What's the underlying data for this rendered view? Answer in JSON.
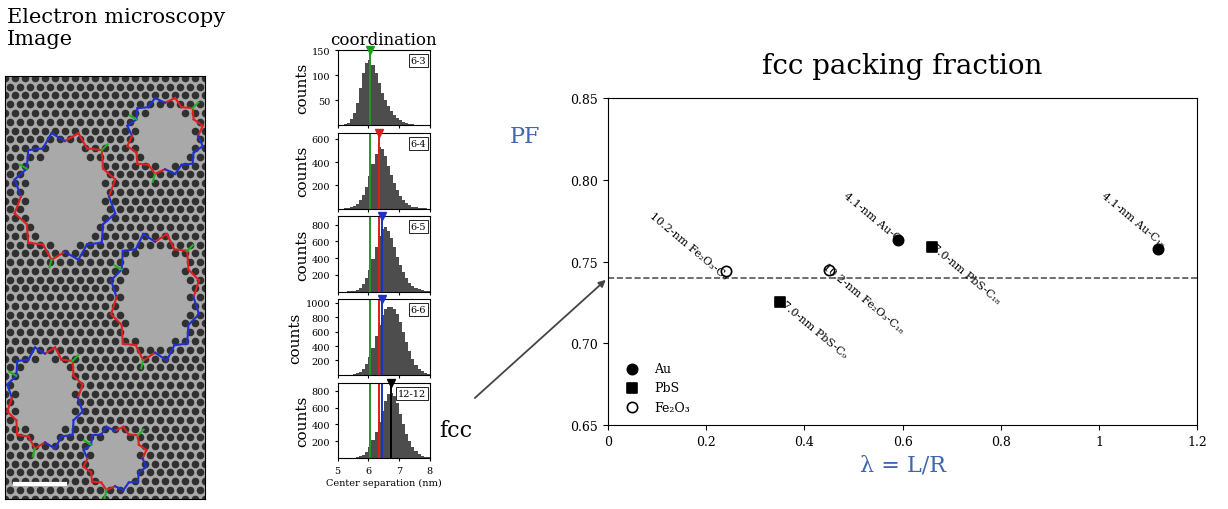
{
  "chart_data": [
    {
      "type": "image",
      "title": "Electron microscopy\nImage"
    },
    {
      "type": "histogram",
      "title": "coordination",
      "label": "6-3",
      "ylabel": "counts",
      "bins": [
        5,
        5.1,
        5.2,
        5.3,
        5.4,
        5.5,
        5.6,
        5.7,
        5.8,
        5.9,
        6,
        6.1,
        6.2,
        6.3,
        6.4,
        6.5,
        6.6,
        6.7,
        6.8,
        6.9,
        7,
        7.1,
        7.2,
        7.3,
        7.4,
        7.5,
        7.6,
        7.7,
        7.8,
        7.9,
        8
      ],
      "counts": [
        0,
        0,
        2,
        5,
        12,
        25,
        45,
        75,
        105,
        125,
        130,
        120,
        105,
        85,
        65,
        50,
        38,
        28,
        20,
        14,
        10,
        7,
        5,
        3,
        2,
        1,
        0,
        0,
        0,
        0
      ],
      "xlim": [
        5,
        8
      ],
      "xticks": [
        5,
        6,
        7,
        8
      ],
      "ylim": [
        0,
        150
      ],
      "yticks": [
        50,
        100,
        150
      ],
      "tick_labels": "y",
      "lines": [
        {
          "x": 6.05,
          "color": "#1a9e1a"
        }
      ]
    },
    {
      "type": "histogram",
      "label": "6-4",
      "ylabel": "counts",
      "bins": [
        5,
        5.1,
        5.2,
        5.3,
        5.4,
        5.5,
        5.6,
        5.7,
        5.8,
        5.9,
        6,
        6.1,
        6.2,
        6.3,
        6.4,
        6.5,
        6.6,
        6.7,
        6.8,
        6.9,
        7,
        7.1,
        7.2,
        7.3,
        7.4,
        7.5,
        7.6,
        7.7,
        7.8,
        7.9,
        8
      ],
      "counts": [
        0,
        0,
        2,
        5,
        10,
        20,
        40,
        70,
        120,
        190,
        280,
        380,
        470,
        530,
        510,
        450,
        370,
        290,
        220,
        160,
        110,
        75,
        50,
        30,
        18,
        10,
        5,
        3,
        1,
        0
      ],
      "xlim": [
        5,
        8
      ],
      "xticks": [
        5,
        6,
        7,
        8
      ],
      "ylim": [
        0,
        650
      ],
      "yticks": [
        200,
        400,
        600
      ],
      "tick_labels": "y",
      "lines": [
        {
          "x": 6.05,
          "color": "#1a9e1a"
        },
        {
          "x": 6.35,
          "color": "#d62020"
        }
      ]
    },
    {
      "type": "histogram",
      "label": "6-5",
      "ylabel": "counts",
      "bins": [
        5,
        5.1,
        5.2,
        5.3,
        5.4,
        5.5,
        5.6,
        5.7,
        5.8,
        5.9,
        6,
        6.1,
        6.2,
        6.3,
        6.4,
        6.5,
        6.6,
        6.7,
        6.8,
        6.9,
        7,
        7.1,
        7.2,
        7.3,
        7.4,
        7.5,
        7.6,
        7.7,
        7.8,
        7.9,
        8
      ],
      "counts": [
        0,
        0,
        1,
        3,
        6,
        12,
        25,
        50,
        90,
        160,
        260,
        390,
        530,
        660,
        750,
        770,
        730,
        640,
        530,
        420,
        320,
        230,
        160,
        110,
        70,
        45,
        28,
        16,
        8,
        4
      ],
      "xlim": [
        5,
        8
      ],
      "xticks": [
        5,
        6,
        7,
        8
      ],
      "ylim": [
        0,
        900
      ],
      "yticks": [
        200,
        400,
        600,
        800
      ],
      "tick_labels": "y",
      "lines": [
        {
          "x": 6.05,
          "color": "#1a9e1a"
        },
        {
          "x": 6.35,
          "color": "#d62020"
        },
        {
          "x": 6.45,
          "color": "#2030c0"
        }
      ]
    },
    {
      "type": "histogram",
      "label": "6-6",
      "ylabel": "counts",
      "bins": [
        5,
        5.1,
        5.2,
        5.3,
        5.4,
        5.5,
        5.6,
        5.7,
        5.8,
        5.9,
        6,
        6.1,
        6.2,
        6.3,
        6.4,
        6.5,
        6.6,
        6.7,
        6.8,
        6.9,
        7,
        7.1,
        7.2,
        7.3,
        7.4,
        7.5,
        7.6,
        7.7,
        7.8,
        7.9,
        8
      ],
      "counts": [
        0,
        0,
        1,
        2,
        5,
        10,
        20,
        40,
        80,
        150,
        250,
        380,
        540,
        700,
        830,
        920,
        950,
        950,
        920,
        850,
        740,
        600,
        460,
        330,
        220,
        140,
        85,
        50,
        25,
        12
      ],
      "xlim": [
        5,
        8
      ],
      "xticks": [
        5,
        6,
        7,
        8
      ],
      "ylim": [
        0,
        1050
      ],
      "yticks": [
        200,
        400,
        600,
        800,
        1000
      ],
      "tick_labels": "y",
      "lines": [
        {
          "x": 6.05,
          "color": "#1a9e1a"
        },
        {
          "x": 6.35,
          "color": "#d62020"
        },
        {
          "x": 6.45,
          "color": "#2030c0"
        }
      ]
    },
    {
      "type": "histogram",
      "label": "12-12",
      "ylabel": "counts",
      "xlabel": "Center separation (nm)",
      "annotation": "fcc",
      "bins": [
        5,
        5.1,
        5.2,
        5.3,
        5.4,
        5.5,
        5.6,
        5.7,
        5.8,
        5.9,
        6,
        6.1,
        6.2,
        6.3,
        6.4,
        6.5,
        6.6,
        6.7,
        6.8,
        6.9,
        7,
        7.1,
        7.2,
        7.3,
        7.4,
        7.5,
        7.6,
        7.7,
        7.8,
        7.9,
        8
      ],
      "counts": [
        0,
        0,
        0,
        1,
        2,
        5,
        10,
        20,
        40,
        75,
        130,
        210,
        310,
        430,
        560,
        680,
        760,
        780,
        740,
        650,
        530,
        400,
        290,
        200,
        130,
        80,
        45,
        25,
        12,
        6
      ],
      "xlim": [
        5,
        8
      ],
      "xticks": [
        5,
        6,
        7,
        8
      ],
      "ylim": [
        0,
        900
      ],
      "yticks": [
        200,
        400,
        600,
        800
      ],
      "tick_labels": true,
      "lines": [
        {
          "x": 6.05,
          "color": "#1a9e1a"
        },
        {
          "x": 6.35,
          "color": "#d62020"
        },
        {
          "x": 6.45,
          "color": "#2030c0"
        },
        {
          "x": 6.72,
          "color": "#000000"
        }
      ]
    },
    {
      "type": "scatter",
      "title": "fcc packing fraction",
      "ylabel": "PF",
      "xlabel": "λ = L/R",
      "xlim": [
        0,
        1.2
      ],
      "xticks": [
        0,
        0.2,
        0.4,
        0.6,
        0.8,
        1,
        1.2
      ],
      "ylim": [
        0.65,
        0.85
      ],
      "yticks": [
        {
          "value": 0.65,
          "label": "0.65"
        },
        {
          "value": 0.7,
          "label": "0.70"
        },
        0.75,
        {
          "value": 0.8,
          "label": "0.80"
        },
        0.85
      ],
      "hline": 0.74,
      "legend": "lower left",
      "series": [
        {
          "name": "Au",
          "marker": "circle",
          "color": "#000000",
          "x": [
            0.59,
            1.12
          ],
          "values": [
            0.763,
            0.758
          ],
          "point_labels": [
            "4.1-nm Au-C₉",
            "4.1-nm Au-C₁₈"
          ]
        },
        {
          "name": "PbS",
          "marker": "square",
          "color": "#000000",
          "x": [
            0.35,
            0.66
          ],
          "values": [
            0.725,
            0.759
          ],
          "point_labels": [
            "7.0-nm PbS-C₉",
            "7.0-nm PbS-C₁₈"
          ]
        },
        {
          "name": "Fe₂O₃",
          "marker": "open_circle",
          "color": "#000000",
          "x": [
            0.24,
            0.45
          ],
          "values": [
            0.744,
            0.745
          ],
          "point_labels": [
            "10.2-nm Fe₂O₃-C₉",
            "10.2-nm Fe₂O₃-C₁₈"
          ]
        }
      ]
    }
  ]
}
